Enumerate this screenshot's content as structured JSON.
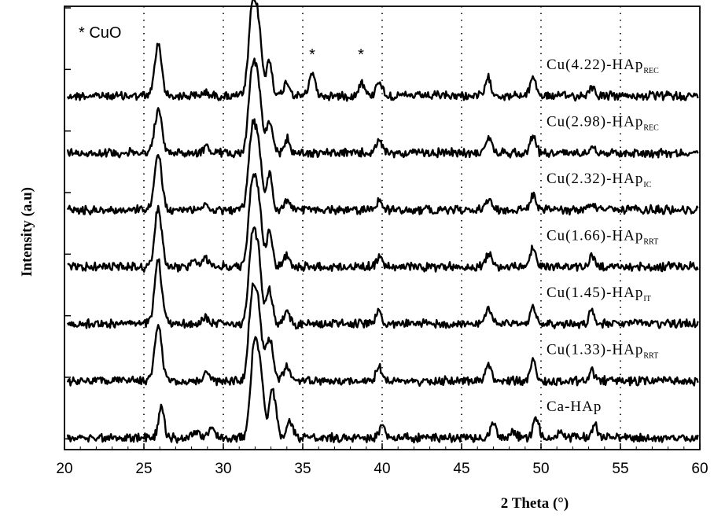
{
  "chart_data": {
    "type": "line",
    "title": "",
    "xlabel": "2 Theta (°)",
    "ylabel": "Intensity (a.u)",
    "xlim": [
      20,
      60
    ],
    "x_ticks": [
      20,
      25,
      30,
      35,
      40,
      45,
      50,
      55,
      60
    ],
    "grid": "dotted vertical lines at x ticks",
    "legend_note": "* CuO",
    "markers": [
      {
        "label": "*",
        "x": 35.6
      },
      {
        "label": "*",
        "x": 38.7
      }
    ],
    "series": [
      {
        "name": "Cu(4.22)-HAp",
        "subscript": "REC",
        "peaks": [
          [
            25.9,
            0.65
          ],
          [
            28.9,
            0.05
          ],
          [
            31.8,
            1.0
          ],
          [
            32.2,
            0.85
          ],
          [
            32.9,
            0.45
          ],
          [
            34.0,
            0.18
          ],
          [
            35.6,
            0.3
          ],
          [
            38.7,
            0.18
          ],
          [
            39.8,
            0.2
          ],
          [
            46.7,
            0.22
          ],
          [
            49.5,
            0.25
          ],
          [
            53.2,
            0.12
          ]
        ]
      },
      {
        "name": "Cu(2.98)-HAp",
        "subscript": "REC",
        "peaks": [
          [
            25.9,
            0.55
          ],
          [
            28.9,
            0.08
          ],
          [
            31.8,
            0.95
          ],
          [
            32.2,
            0.8
          ],
          [
            32.9,
            0.4
          ],
          [
            34.0,
            0.18
          ],
          [
            39.8,
            0.15
          ],
          [
            46.7,
            0.2
          ],
          [
            49.5,
            0.22
          ],
          [
            53.2,
            0.1
          ]
        ]
      },
      {
        "name": "Cu(2.32)-HAp",
        "subscript": "IC",
        "peaks": [
          [
            25.9,
            0.7
          ],
          [
            28.9,
            0.08
          ],
          [
            31.8,
            0.9
          ],
          [
            32.2,
            0.75
          ],
          [
            32.9,
            0.45
          ],
          [
            34.0,
            0.12
          ],
          [
            39.8,
            0.12
          ],
          [
            46.7,
            0.15
          ],
          [
            49.5,
            0.2
          ],
          [
            53.2,
            0.08
          ]
        ]
      },
      {
        "name": "Cu(1.66)-HAp",
        "subscript": "RRT",
        "peaks": [
          [
            25.9,
            0.75
          ],
          [
            28.2,
            0.08
          ],
          [
            28.9,
            0.1
          ],
          [
            31.8,
            0.95
          ],
          [
            32.2,
            0.8
          ],
          [
            32.9,
            0.45
          ],
          [
            34.0,
            0.15
          ],
          [
            39.8,
            0.12
          ],
          [
            46.7,
            0.18
          ],
          [
            49.5,
            0.25
          ],
          [
            53.2,
            0.12
          ]
        ]
      },
      {
        "name": "Cu(1.45)-HAp",
        "subscript": "IT",
        "peaks": [
          [
            25.9,
            0.8
          ],
          [
            28.9,
            0.08
          ],
          [
            31.8,
            1.0
          ],
          [
            32.2,
            0.8
          ],
          [
            32.9,
            0.45
          ],
          [
            34.0,
            0.18
          ],
          [
            39.8,
            0.15
          ],
          [
            46.7,
            0.2
          ],
          [
            49.5,
            0.22
          ],
          [
            53.2,
            0.15
          ]
        ]
      },
      {
        "name": "Cu(1.33)-HAp",
        "subscript": "RRT",
        "peaks": [
          [
            25.9,
            0.7
          ],
          [
            28.9,
            0.1
          ],
          [
            31.8,
            1.0
          ],
          [
            32.2,
            0.85
          ],
          [
            32.9,
            0.55
          ],
          [
            34.0,
            0.2
          ],
          [
            39.8,
            0.18
          ],
          [
            46.7,
            0.22
          ],
          [
            49.5,
            0.25
          ],
          [
            53.2,
            0.12
          ]
        ]
      },
      {
        "name": "Ca-HAp",
        "subscript": "",
        "peaks": [
          [
            26.1,
            0.4
          ],
          [
            28.3,
            0.08
          ],
          [
            29.3,
            0.12
          ],
          [
            31.9,
            1.0
          ],
          [
            32.3,
            0.85
          ],
          [
            33.1,
            0.6
          ],
          [
            34.2,
            0.2
          ],
          [
            40.0,
            0.15
          ],
          [
            47.0,
            0.2
          ],
          [
            48.3,
            0.08
          ],
          [
            49.7,
            0.25
          ],
          [
            51.3,
            0.08
          ],
          [
            53.4,
            0.15
          ]
        ]
      }
    ]
  }
}
